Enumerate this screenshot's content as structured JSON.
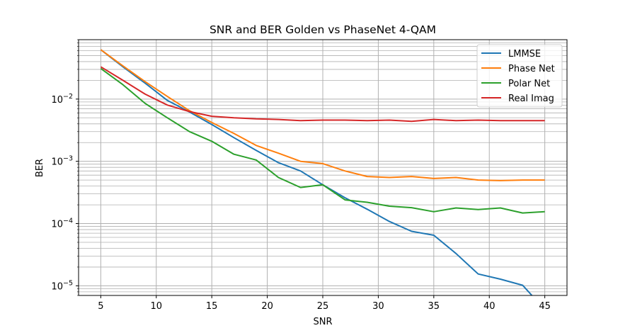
{
  "chart_data": {
    "type": "line",
    "title": "SNR and BER Golden vs PhaseNet 4-QAM",
    "xlabel": "SNR",
    "ylabel": "BER",
    "xlim": [
      3,
      47
    ],
    "ylim": [
      7e-06,
      0.09
    ],
    "yscale": "log",
    "grid": true,
    "legend_position": "top-right",
    "x_ticks": [
      5,
      10,
      15,
      20,
      25,
      30,
      35,
      40,
      45
    ],
    "y_ticks": [
      {
        "value": 1e-05,
        "mantissa": "10",
        "exp": "−5"
      },
      {
        "value": 0.0001,
        "mantissa": "10",
        "exp": "−4"
      },
      {
        "value": 0.001,
        "mantissa": "10",
        "exp": "−3"
      },
      {
        "value": 0.01,
        "mantissa": "10",
        "exp": "−2"
      }
    ],
    "x": [
      5,
      7,
      9,
      11,
      13,
      15,
      17,
      19,
      21,
      23,
      25,
      27,
      29,
      31,
      33,
      35,
      37,
      39,
      41,
      43,
      45
    ],
    "series": [
      {
        "name": "LMMSE",
        "color": "#1f77b4",
        "values": [
          0.062,
          0.033,
          0.018,
          0.0095,
          0.0062,
          0.0039,
          0.0024,
          0.0015,
          0.00095,
          0.0007,
          0.00042,
          0.00026,
          0.00017,
          0.000108,
          7.5e-05,
          6.5e-05,
          3.3e-05,
          1.55e-05,
          1.28e-05,
          1.02e-05,
          1e-07
        ]
      },
      {
        "name": "Phase Net",
        "color": "#ff7f0e",
        "values": [
          0.062,
          0.034,
          0.019,
          0.011,
          0.0065,
          0.0042,
          0.0028,
          0.0018,
          0.00135,
          0.001,
          0.00092,
          0.0007,
          0.00057,
          0.00055,
          0.00057,
          0.00053,
          0.00055,
          0.0005,
          0.00049,
          0.0005,
          0.0005
        ]
      },
      {
        "name": "Polar Net",
        "color": "#2ca02c",
        "values": [
          0.031,
          0.017,
          0.0085,
          0.005,
          0.003,
          0.0021,
          0.0013,
          0.00105,
          0.00055,
          0.00038,
          0.00042,
          0.00024,
          0.00022,
          0.00019,
          0.00018,
          0.000155,
          0.000178,
          0.000168,
          0.000178,
          0.000148,
          0.000155
        ]
      },
      {
        "name": "Real Imag",
        "color": "#d62728",
        "values": [
          0.033,
          0.02,
          0.012,
          0.008,
          0.0063,
          0.0053,
          0.005,
          0.0048,
          0.0047,
          0.0045,
          0.0046,
          0.0046,
          0.0045,
          0.0046,
          0.0044,
          0.0047,
          0.0045,
          0.0046,
          0.0045,
          0.0045,
          0.0045
        ]
      }
    ]
  }
}
